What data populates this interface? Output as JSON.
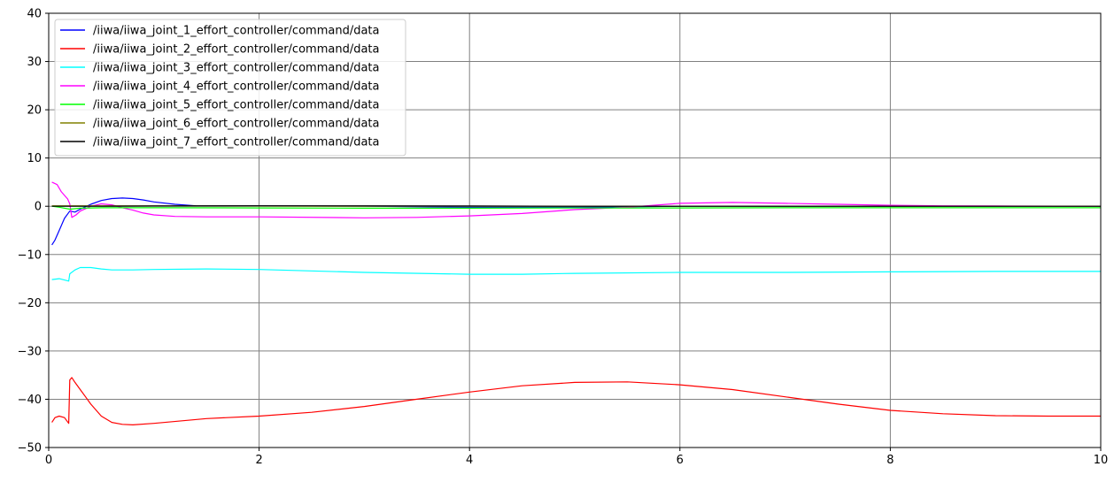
{
  "chart_data": {
    "type": "line",
    "title": "",
    "xlabel": "",
    "ylabel": "",
    "xlim": [
      0,
      10
    ],
    "ylim": [
      -50,
      40
    ],
    "grid": true,
    "legend_position": "top-left",
    "x_ticks": [
      0,
      2,
      4,
      6,
      8,
      10
    ],
    "x_tick_labels": [
      "0",
      "2",
      "4",
      "6",
      "8",
      "10"
    ],
    "y_ticks": [
      -50,
      -40,
      -30,
      -20,
      -10,
      0,
      10,
      20,
      30,
      40
    ],
    "y_tick_labels": [
      "−50",
      "−40",
      "−30",
      "−20",
      "−10",
      "0",
      "10",
      "20",
      "30",
      "40"
    ],
    "series": [
      {
        "name": "/iiwa/iiwa_joint_1_effort_controller/command/data",
        "color": "#0000ff",
        "x": [
          0.03,
          0.06,
          0.1,
          0.15,
          0.2,
          0.25,
          0.3,
          0.4,
          0.5,
          0.6,
          0.7,
          0.8,
          0.9,
          1.0,
          1.2,
          1.4,
          1.6,
          2.0,
          3.0,
          4.0,
          5.0,
          6.0,
          7.0,
          8.0,
          9.0,
          10.0
        ],
        "y": [
          -8,
          -7,
          -5,
          -2.5,
          -1,
          -1.2,
          -0.6,
          0.4,
          1.2,
          1.6,
          1.7,
          1.6,
          1.3,
          0.9,
          0.4,
          0.1,
          0.05,
          0.1,
          0.0,
          -0.2,
          -0.2,
          0.0,
          0.0,
          0.0,
          0.0,
          0.0
        ]
      },
      {
        "name": "/iiwa/iiwa_joint_2_effort_controller/command/data",
        "color": "#ff0000",
        "x": [
          0.03,
          0.06,
          0.1,
          0.15,
          0.19,
          0.2,
          0.22,
          0.25,
          0.3,
          0.35,
          0.4,
          0.5,
          0.6,
          0.7,
          0.8,
          1.0,
          1.5,
          2.0,
          2.5,
          3.0,
          3.5,
          4.0,
          4.5,
          5.0,
          5.5,
          6.0,
          6.5,
          7.0,
          7.5,
          8.0,
          8.5,
          9.0,
          9.5,
          10.0
        ],
        "y": [
          -44.8,
          -43.8,
          -43.5,
          -43.8,
          -45,
          -36,
          -35.5,
          -36.5,
          -38,
          -39.5,
          -41,
          -43.5,
          -44.8,
          -45.2,
          -45.3,
          -45,
          -44,
          -43.5,
          -42.7,
          -41.5,
          -40,
          -38.5,
          -37.2,
          -36.5,
          -36.4,
          -37,
          -38,
          -39.5,
          -41,
          -42.3,
          -43,
          -43.4,
          -43.5,
          -43.5
        ]
      },
      {
        "name": "/iiwa/iiwa_joint_3_effort_controller/command/data",
        "color": "#00ffff",
        "x": [
          0.03,
          0.1,
          0.19,
          0.2,
          0.25,
          0.3,
          0.4,
          0.5,
          0.6,
          0.8,
          1.0,
          1.5,
          2.0,
          3.0,
          4.0,
          4.5,
          5.0,
          6.0,
          7.0,
          8.0,
          9.0,
          10.0
        ],
        "y": [
          -15.2,
          -15,
          -15.5,
          -14,
          -13.2,
          -12.7,
          -12.7,
          -13,
          -13.2,
          -13.2,
          -13.1,
          -13,
          -13.1,
          -13.7,
          -14.1,
          -14.1,
          -13.9,
          -13.7,
          -13.7,
          -13.6,
          -13.5,
          -13.5
        ]
      },
      {
        "name": "/iiwa/iiwa_joint_4_effort_controller/command/data",
        "color": "#ff00ff",
        "x": [
          0.03,
          0.08,
          0.12,
          0.18,
          0.2,
          0.22,
          0.26,
          0.3,
          0.35,
          0.4,
          0.5,
          0.6,
          0.7,
          0.8,
          0.9,
          1.0,
          1.2,
          1.5,
          2.0,
          3.0,
          3.5,
          4.0,
          4.5,
          5.0,
          5.5,
          6.0,
          6.5,
          7.0,
          7.5,
          8.0,
          8.5,
          9.0,
          10.0
        ],
        "y": [
          5,
          4.5,
          3,
          1.5,
          0.5,
          -2.3,
          -1.8,
          -1,
          -0.5,
          0,
          0.5,
          0.3,
          -0.3,
          -0.8,
          -1.4,
          -1.8,
          -2.1,
          -2.2,
          -2.2,
          -2.4,
          -2.3,
          -2.0,
          -1.5,
          -0.7,
          -0.2,
          0.6,
          0.8,
          0.6,
          0.4,
          0.2,
          0.1,
          0.05,
          0.0
        ]
      },
      {
        "name": "/iiwa/iiwa_joint_5_effort_controller/command/data",
        "color": "#00ff00",
        "x": [
          0.03,
          0.1,
          0.2,
          0.3,
          0.5,
          0.8,
          1.0,
          2.0,
          3.0,
          4.0,
          5.0,
          6.0,
          7.0,
          8.0,
          9.0,
          10.0
        ],
        "y": [
          0,
          -0.2,
          -0.6,
          -0.4,
          -0.3,
          -0.3,
          -0.3,
          -0.35,
          -0.4,
          -0.4,
          -0.35,
          -0.35,
          -0.3,
          -0.3,
          -0.3,
          -0.3
        ]
      },
      {
        "name": "/iiwa/iiwa_joint_6_effort_controller/command/data",
        "color": "#808000",
        "x": [
          0.03,
          0.5,
          1.0,
          2.0,
          3.0,
          4.0,
          5.0,
          6.0,
          7.0,
          8.0,
          9.0,
          10.0
        ],
        "y": [
          0.1,
          0.1,
          0.05,
          0.05,
          0.0,
          0.0,
          0.0,
          0.0,
          0.0,
          0.0,
          0.0,
          0.0
        ]
      },
      {
        "name": "/iiwa/iiwa_joint_7_effort_controller/command/data",
        "color": "#000000",
        "x": [
          0.03,
          0.5,
          1.0,
          2.0,
          3.0,
          4.0,
          5.0,
          6.0,
          7.0,
          8.0,
          9.0,
          10.0
        ],
        "y": [
          0.0,
          0.0,
          0.05,
          0.1,
          0.1,
          0.05,
          0.0,
          0.0,
          0.0,
          0.0,
          0.0,
          0.0
        ]
      }
    ]
  }
}
